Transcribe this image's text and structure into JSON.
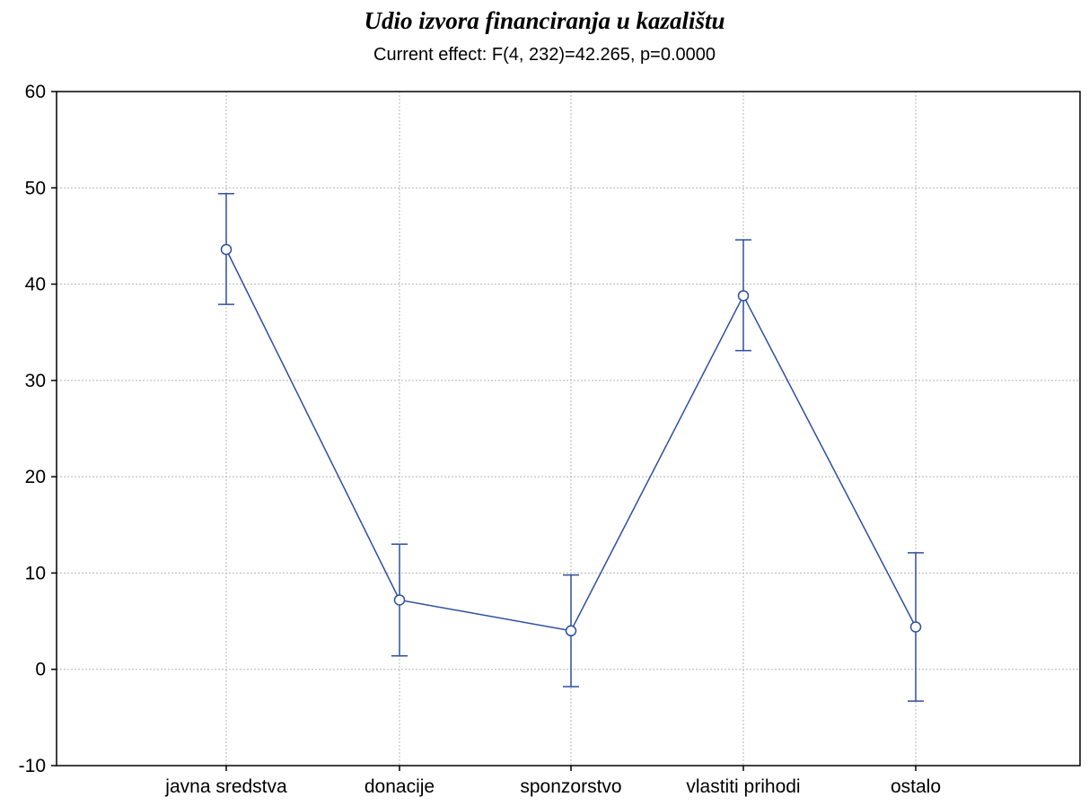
{
  "chart_data": {
    "type": "line",
    "title": "Udio izvora financiranja u kazalištu",
    "subtitle": "Current effect: F(4, 232)=42.265, p=0.0000",
    "xlabel": "",
    "ylabel": "",
    "categories": [
      "javna sredstva",
      "donacije",
      "sponzorstvo",
      "vlastiti prihodi",
      "ostalo"
    ],
    "series": [
      {
        "values": [
          43.6,
          7.2,
          4.0,
          38.8,
          4.4
        ],
        "lower": [
          37.9,
          1.4,
          -1.8,
          33.1,
          -3.3
        ],
        "upper": [
          49.4,
          13.0,
          9.8,
          44.6,
          12.1
        ]
      }
    ],
    "ylim": [
      -10,
      60
    ],
    "yticks": [
      -10,
      0,
      10,
      20,
      30,
      40,
      50,
      60
    ],
    "grid": true,
    "error_bars": true,
    "line_color": "#2e4f9e"
  }
}
